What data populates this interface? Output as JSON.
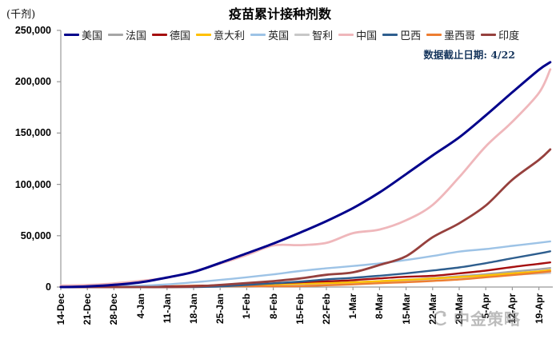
{
  "header": {
    "unit_label": "(千剂)",
    "title": "疫苗累计接种剂数",
    "note": "数据截止日期: 4/22"
  },
  "watermark": {
    "text": "中金策略"
  },
  "chart_data": {
    "type": "line",
    "title": "疫苗累计接种剂数",
    "ylabel": "(千剂)",
    "note": "数据截止日期: 4/22",
    "grid": false,
    "legend_position": "top",
    "ylim": [
      0,
      250000
    ],
    "y_ticks": [
      0,
      50000,
      100000,
      150000,
      200000,
      250000
    ],
    "y_tick_labels": [
      "0",
      "50,000",
      "100,000",
      "150,000",
      "200,000",
      "250,000"
    ],
    "categories": [
      "14-Dec",
      "21-Dec",
      "28-Dec",
      "4-Jan",
      "11-Jan",
      "18-Jan",
      "25-Jan",
      "1-Feb",
      "8-Feb",
      "15-Feb",
      "22-Feb",
      "1-Mar",
      "8-Mar",
      "15-Mar",
      "22-Mar",
      "29-Mar",
      "5-Apr",
      "12-Apr",
      "19-Apr"
    ],
    "end_date": "4/22",
    "series": [
      {
        "name": "美国",
        "color": "#00008B",
        "values": [
          0,
          600,
          2100,
          4600,
          9300,
          14700,
          23500,
          32800,
          42400,
          52900,
          64200,
          76900,
          92100,
          110000,
          128200,
          145800,
          167200,
          189700,
          211600,
          219000
        ]
      },
      {
        "name": "法国",
        "color": "#A6A6A6",
        "values": [
          0,
          0,
          10,
          80,
          190,
          500,
          1250,
          1700,
          2150,
          2900,
          3900,
          4700,
          5700,
          7100,
          8600,
          10600,
          12500,
          15000,
          17300,
          18500
        ]
      },
      {
        "name": "德国",
        "color": "#A50F0F",
        "values": [
          0,
          0,
          20,
          300,
          650,
          1100,
          1800,
          2700,
          3600,
          4700,
          5600,
          6700,
          8400,
          10000,
          10900,
          13300,
          16000,
          19500,
          22600,
          24000
        ]
      },
      {
        "name": "意大利",
        "color": "#FFC000",
        "values": [
          0,
          0,
          10,
          260,
          650,
          1150,
          1450,
          2000,
          2600,
          3200,
          3800,
          4600,
          5700,
          6900,
          8300,
          9800,
          11300,
          13300,
          15300,
          16500
        ]
      },
      {
        "name": "英国",
        "color": "#9DC3E6",
        "values": [
          140,
          600,
          950,
          1300,
          2600,
          4600,
          6900,
          9500,
          12300,
          15600,
          18200,
          20500,
          23000,
          26300,
          30200,
          34500,
          37000,
          40100,
          43100,
          44500
        ]
      },
      {
        "name": "智利",
        "color": "#C8C8C8",
        "values": [
          0,
          0,
          10,
          20,
          30,
          50,
          70,
          100,
          1000,
          2500,
          3200,
          3800,
          4900,
          6100,
          7600,
          9200,
          10700,
          12000,
          13100,
          13700
        ]
      },
      {
        "name": "中国",
        "color": "#EFB7BB",
        "values": [
          1500,
          2000,
          3500,
          6000,
          9000,
          15000,
          22800,
          31200,
          40500,
          40800,
          43000,
          52500,
          56000,
          65000,
          80000,
          107000,
          137000,
          161000,
          189000,
          212000
        ]
      },
      {
        "name": "巴西",
        "color": "#2E5E8E",
        "values": [
          0,
          0,
          0,
          0,
          0,
          10,
          600,
          2000,
          3600,
          5300,
          7500,
          9000,
          11000,
          13300,
          16100,
          19100,
          23200,
          28000,
          32600,
          34800
        ]
      },
      {
        "name": "墨西哥",
        "color": "#ED7D31",
        "values": [
          0,
          0,
          20,
          50,
          90,
          500,
          650,
          680,
          720,
          850,
          1700,
          2600,
          3700,
          4700,
          5900,
          7300,
          9500,
          11600,
          14100,
          15300
        ]
      },
      {
        "name": "印度",
        "color": "#96403D",
        "values": [
          0,
          0,
          0,
          0,
          0,
          450,
          2000,
          3900,
          5800,
          8300,
          11900,
          14300,
          21500,
          30000,
          48500,
          62100,
          79400,
          104500,
          123800,
          134000
        ]
      }
    ]
  }
}
